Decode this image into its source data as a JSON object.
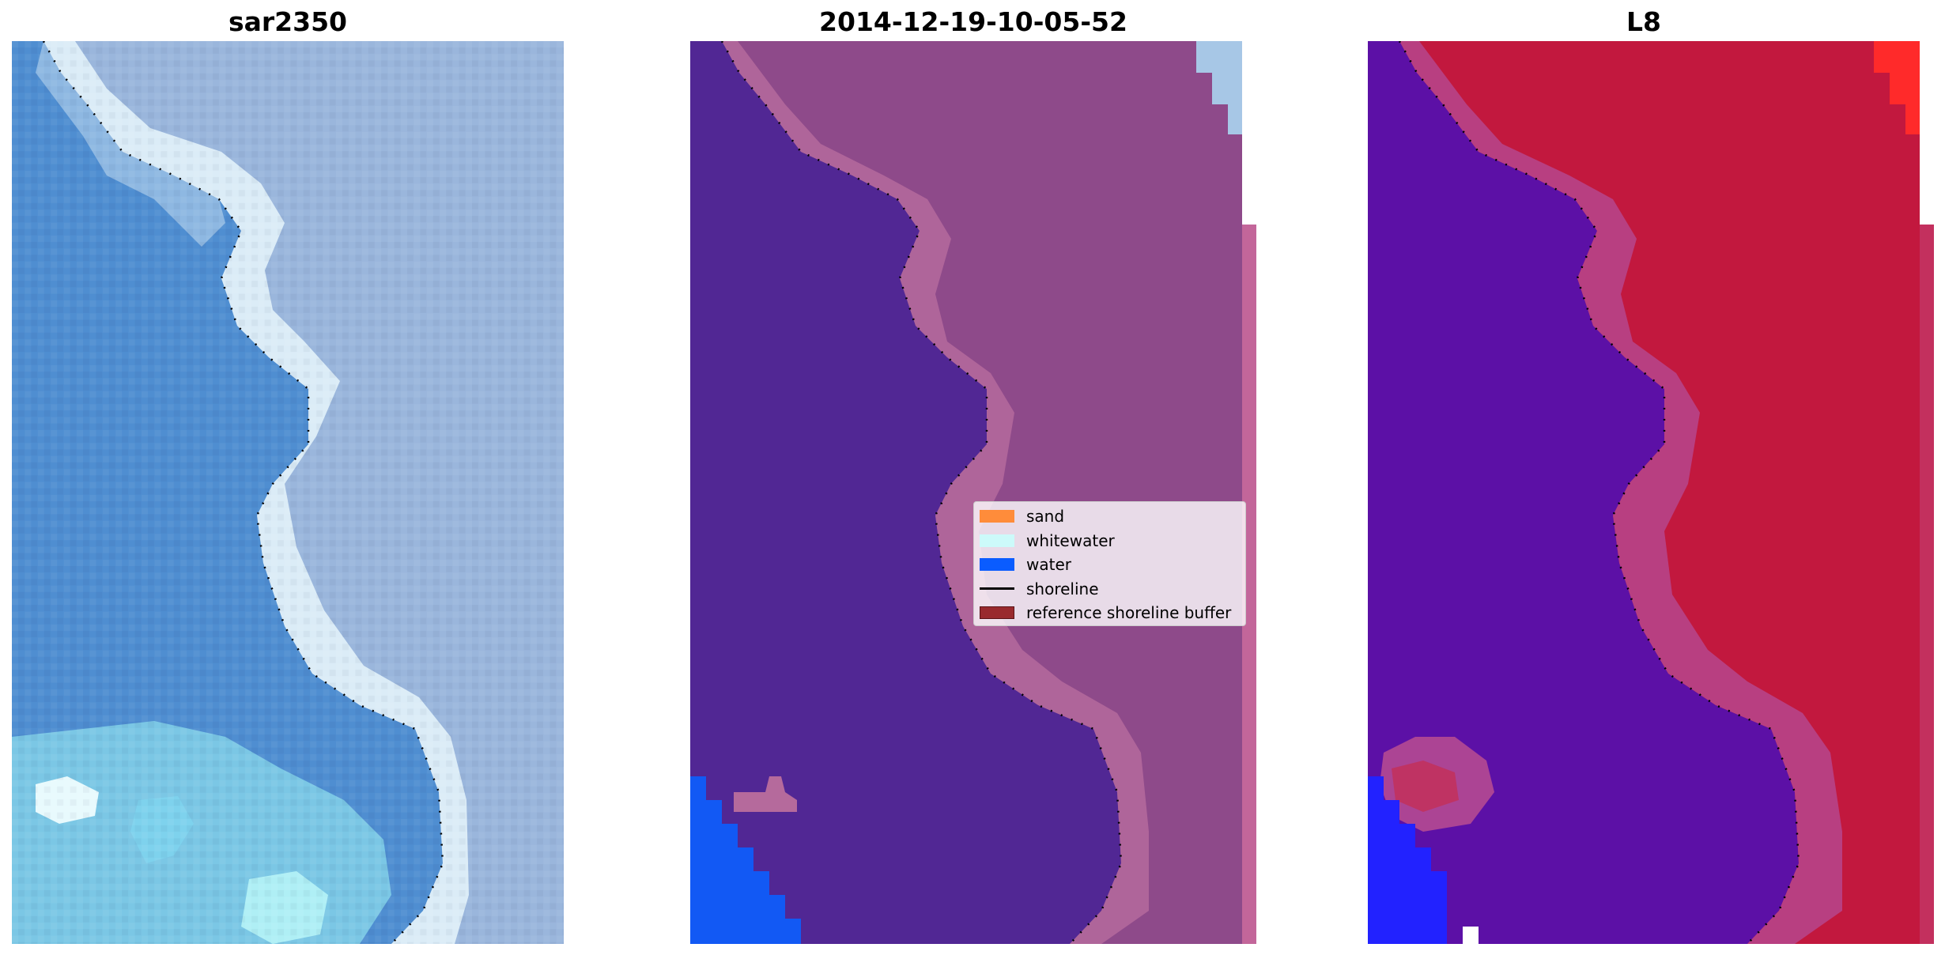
{
  "panels": [
    {
      "title": "sar2350"
    },
    {
      "title": "2014-12-19-10-05-52"
    },
    {
      "title": "L8"
    }
  ],
  "legend": {
    "items": [
      {
        "label": "sand",
        "color": "#FF8C3A",
        "kind": "patch"
      },
      {
        "label": "whitewater",
        "color": "#CCFAFA",
        "kind": "patch"
      },
      {
        "label": "water",
        "color": "#0A5CFF",
        "kind": "patch"
      },
      {
        "label": "shoreline",
        "color": "#000000",
        "kind": "line"
      },
      {
        "label": "reference shoreline buffer",
        "color": "#992A2E",
        "kind": "patch"
      }
    ]
  },
  "colors": {
    "rgb_water": "#4f8ed1",
    "rgb_land": "#9ab6dc",
    "rgb_foam": "#e6f6fb",
    "rgb_lagoon": "#8fe0ee",
    "class_water": "#512794",
    "class_land": "#8e4a8a",
    "class_land_edge": "#b56a9c",
    "class_sea_blue": "#1259f4",
    "class_sky": "#a7c7e6",
    "mndwi_water": "#5c10a6",
    "mndwi_land": "#c2183e",
    "mndwi_edge": "#b54a92",
    "mndwi_blue": "#2222ff",
    "mndwi_red": "#ff2a2a",
    "shoreline": "#000000"
  }
}
